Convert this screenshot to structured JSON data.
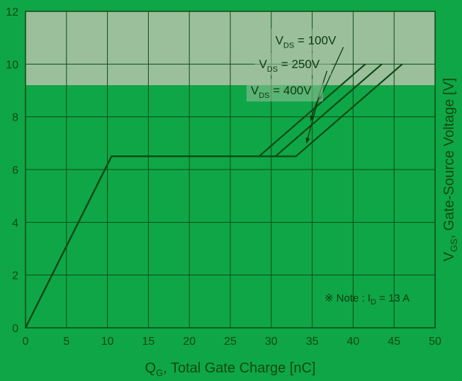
{
  "chart_data": {
    "type": "line",
    "title": "",
    "xlabel": "Q",
    "xlabel_sub": "G",
    "xlabel_rest": ", Total Gate Charge [nC]",
    "ylabel": "V",
    "ylabel_sub": "GS",
    "ylabel_rest": ", Gate-Source Voltage [V]",
    "xlim": [
      0,
      50
    ],
    "ylim": [
      0,
      12
    ],
    "x_ticks": [
      "0",
      "5",
      "10",
      "15",
      "20",
      "25",
      "30",
      "35",
      "40",
      "45",
      "50"
    ],
    "y_ticks": [
      "0",
      "2",
      "4",
      "6",
      "8",
      "10",
      "12"
    ],
    "grid": true,
    "series": [
      {
        "name": "V_DS = 100V",
        "x": [
          0,
          10.5,
          28.5,
          41.5
        ],
        "y": [
          0,
          6.5,
          6.5,
          10
        ]
      },
      {
        "name": "V_DS = 250V",
        "x": [
          0,
          10.5,
          30.5,
          43.5
        ],
        "y": [
          0,
          6.5,
          6.5,
          10
        ]
      },
      {
        "name": "V_DS = 400V",
        "x": [
          0,
          10.5,
          33,
          46
        ],
        "y": [
          0,
          6.5,
          6.5,
          10
        ]
      }
    ],
    "annotations": [
      {
        "label_main": "V",
        "label_sub": "DS",
        "label_rest": " = 100V",
        "tx": 30.5,
        "ty": 10.75,
        "ax": 35.8,
        "ay": 8.6
      },
      {
        "label_main": "V",
        "label_sub": "DS",
        "label_rest": " = 250V",
        "tx": 28.5,
        "ty": 9.85,
        "ax": 34.8,
        "ay": 7.85
      },
      {
        "label_main": "V",
        "label_sub": "DS",
        "label_rest": " = 400V",
        "tx": 27.5,
        "ty": 8.85,
        "ax": 34.3,
        "ay": 7.0
      }
    ],
    "note": {
      "symbol": "※",
      "text_main": " Note : I",
      "text_sub": "D",
      "text_rest": " = 13 A",
      "x": 36.5,
      "y": 1.0
    },
    "colors": {
      "plot_bg_upper": "#9bbf9b",
      "plot_bg": "#0fa647",
      "line": "#0d4a14",
      "grid": "#0d4a14",
      "text": "#0f4a0f"
    }
  }
}
